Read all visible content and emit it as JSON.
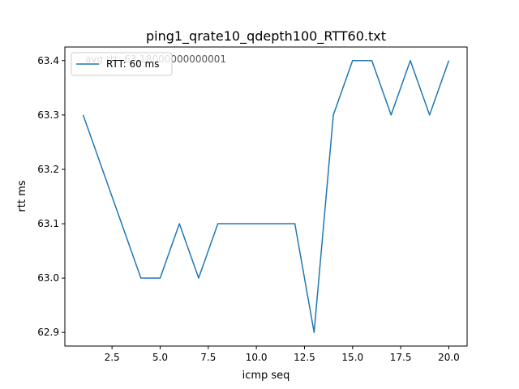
{
  "chart_data": {
    "type": "line",
    "title": "ping1_qrate10_qdepth100_RTT60.txt",
    "xlabel": "icmp seq",
    "ylabel": "rtt ms",
    "xlim": [
      0.05,
      20.95
    ],
    "ylim": [
      62.875,
      63.425
    ],
    "xticks": [
      2.5,
      5.0,
      7.5,
      10.0,
      12.5,
      15.0,
      17.5,
      20.0
    ],
    "xtick_labels": [
      "2.5",
      "5.0",
      "7.5",
      "10.0",
      "12.5",
      "15.0",
      "17.5",
      "20.0"
    ],
    "yticks": [
      62.9,
      63.0,
      63.1,
      63.2,
      63.3,
      63.4
    ],
    "ytick_labels": [
      "62.9",
      "63.0",
      "63.1",
      "63.2",
      "63.3",
      "63.4"
    ],
    "grid": false,
    "legend_position": "upper-left",
    "annotation": "avg rtt: 63.18000000000001",
    "series": [
      {
        "name": "RTT: 60 ms",
        "color": "#1f77b4",
        "x": [
          1,
          2,
          3,
          4,
          5,
          6,
          7,
          8,
          9,
          10,
          11,
          12,
          13,
          14,
          15,
          16,
          17,
          18,
          19,
          20
        ],
        "y": [
          63.3,
          63.2,
          63.1,
          63.0,
          63.0,
          63.1,
          63.0,
          63.1,
          63.1,
          63.1,
          63.1,
          63.1,
          62.9,
          63.3,
          63.4,
          63.4,
          63.3,
          63.4,
          63.3,
          63.4
        ]
      }
    ]
  }
}
